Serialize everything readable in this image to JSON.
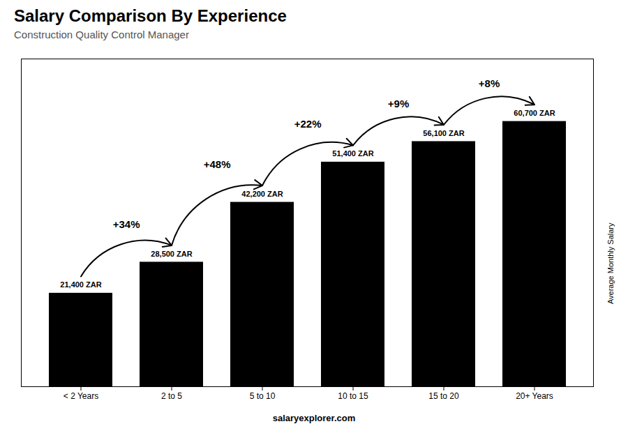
{
  "chart_data": {
    "type": "bar",
    "title": "Salary Comparison By Experience",
    "subtitle": "Construction Quality Control Manager",
    "categories": [
      "< 2 Years",
      "2 to 5",
      "5 to 10",
      "10 to 15",
      "15 to 20",
      "20+ Years"
    ],
    "values": [
      21400,
      28500,
      42200,
      51400,
      56100,
      60700
    ],
    "value_labels": [
      "21,400 ZAR",
      "28,500 ZAR",
      "42,200 ZAR",
      "51,400 ZAR",
      "56,100 ZAR",
      "60,700 ZAR"
    ],
    "data_labels": true,
    "annotations": [
      "+34%",
      "+48%",
      "+22%",
      "+9%",
      "+8%"
    ],
    "ylabel": "Average Monthly Salary",
    "caption": "salaryexplorer.com",
    "ylim": [
      0,
      75000
    ],
    "tick_labels": "x",
    "grid": false
  }
}
